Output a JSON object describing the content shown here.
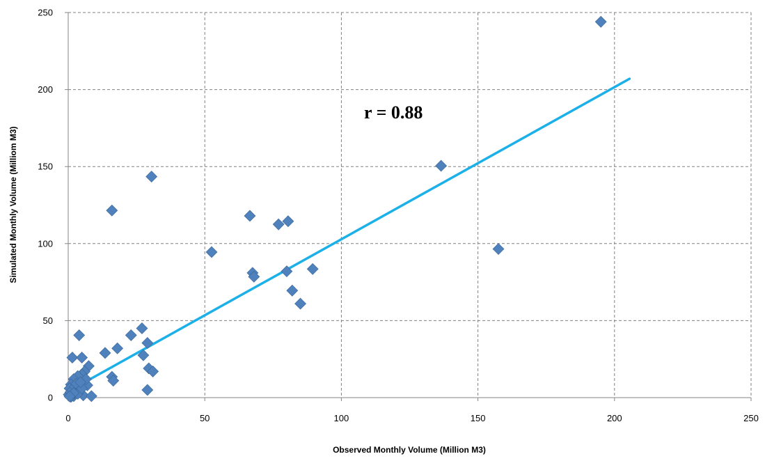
{
  "chart_data": {
    "type": "scatter",
    "title": "",
    "xlabel": "Observed Monthly Volume (Million M3)",
    "ylabel": "Simulated Monthly Volume (Milliom M3)",
    "xlim": [
      0,
      250
    ],
    "ylim": [
      0,
      250
    ],
    "xticks": [
      0,
      50,
      100,
      150,
      200,
      250
    ],
    "yticks": [
      0,
      50,
      100,
      150,
      200,
      250
    ],
    "grid": true,
    "legend": "none",
    "annotation": "r = 0.88",
    "marker_color": "#4F81BD",
    "trendline_color": "#1CB0E8",
    "trendline": {
      "x": [
        4.5,
        205.5
      ],
      "y": [
        8.5,
        207
      ]
    },
    "series": [
      {
        "x": [
          195.0,
          136.5,
          157.5,
          30.5,
          16.0,
          66.5,
          77.0,
          80.5,
          52.5,
          67.5,
          68.0,
          80.0,
          89.5,
          82.0,
          85.0,
          27.0,
          23.0,
          29.0,
          18.0,
          13.5,
          4.0,
          1.5,
          5.0,
          16.0,
          16.5,
          27.5,
          29.5,
          31.0,
          29.0,
          7.5,
          6.0,
          5.0,
          3.5,
          2.0,
          1.0,
          0.5,
          0.2,
          0.8,
          1.5,
          2.5,
          3.0,
          4.0,
          5.5,
          7.0,
          8.5,
          6.5,
          2.0,
          1.0,
          3.5,
          5.0,
          4.5,
          2.0,
          0.5
        ],
        "y": [
          244.0,
          150.5,
          96.5,
          143.5,
          121.5,
          118.0,
          112.5,
          114.5,
          94.5,
          81.0,
          78.5,
          82.0,
          83.5,
          69.5,
          61.0,
          45.0,
          40.5,
          35.5,
          32.0,
          29.0,
          40.5,
          26.0,
          26.0,
          13.5,
          11.0,
          27.5,
          19.0,
          17.0,
          5.0,
          20.5,
          17.0,
          15.0,
          14.0,
          12.0,
          8.5,
          6.0,
          2.0,
          3.5,
          5.0,
          7.0,
          9.0,
          4.0,
          1.5,
          8.0,
          1.0,
          12.0,
          1.0,
          0.5,
          2.5,
          6.0,
          10.0,
          3.0,
          0.8
        ]
      }
    ]
  }
}
